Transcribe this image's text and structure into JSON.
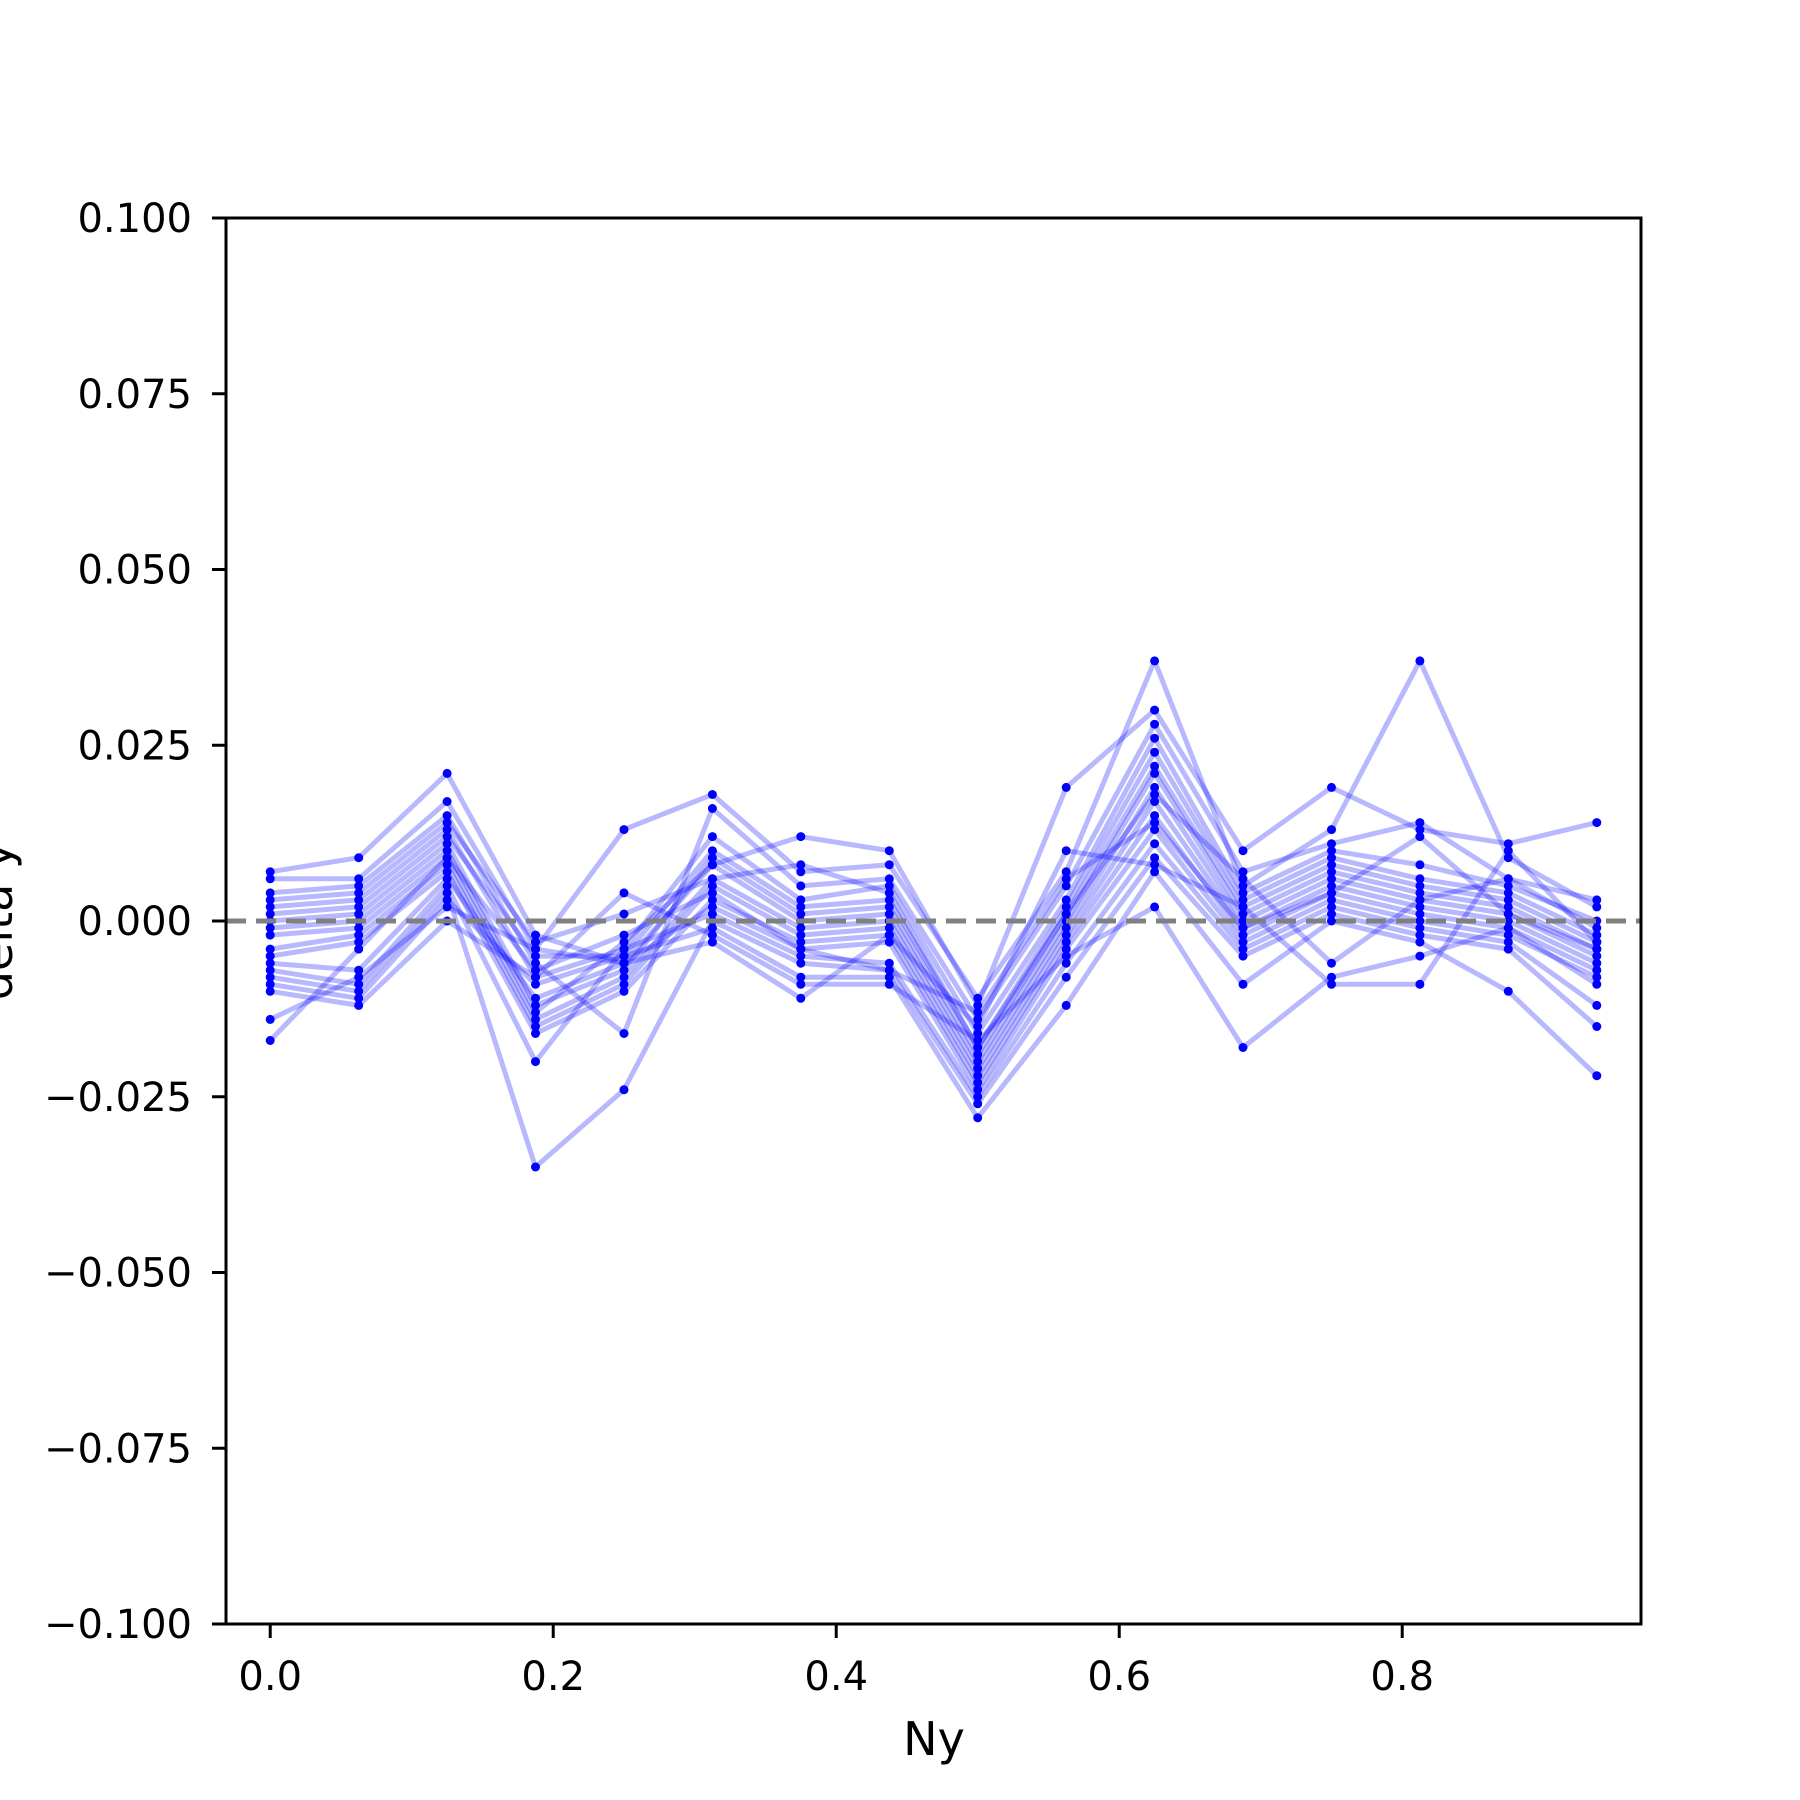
{
  "chart_data": {
    "type": "line",
    "title": "",
    "xlabel": "Ny",
    "ylabel": "delta y",
    "xlim": [
      -0.03125,
      0.96875
    ],
    "ylim": [
      -0.1,
      0.1
    ],
    "x_ticks": [
      0.0,
      0.2,
      0.4,
      0.6,
      0.8
    ],
    "x_tick_labels": [
      "0.0",
      "0.2",
      "0.4",
      "0.6",
      "0.8"
    ],
    "y_ticks": [
      0.1,
      0.075,
      0.05,
      0.025,
      0.0,
      -0.025,
      -0.05,
      -0.075,
      -0.1
    ],
    "y_tick_labels": [
      "0.100",
      "0.075",
      "0.050",
      "0.025",
      "0.000",
      "−0.025",
      "−0.050",
      "−0.075",
      "−0.100"
    ],
    "grid": false,
    "legend": "none",
    "reference_line": {
      "y": 0.0,
      "style": "dashed",
      "color": "#808080"
    },
    "series_style": {
      "color": "#0000ff",
      "line_opacity": 0.28,
      "marker": "dot"
    },
    "x": [
      0.0,
      0.0625,
      0.125,
      0.1875,
      0.25,
      0.3125,
      0.375,
      0.4375,
      0.5,
      0.5625,
      0.625,
      0.6875,
      0.75,
      0.8125,
      0.875,
      0.9375
    ],
    "series": [
      {
        "values": [
          0.007,
          0.009,
          0.021,
          -0.002,
          -0.006,
          0.008,
          0.012,
          0.01,
          -0.012,
          0.019,
          0.03,
          0.01,
          0.019,
          0.013,
          0.011,
          0.014
        ]
      },
      {
        "values": [
          0.006,
          0.006,
          0.017,
          -0.004,
          0.013,
          0.018,
          0.007,
          0.008,
          -0.011,
          0.007,
          0.037,
          0.005,
          0.013,
          0.037,
          0.009,
          0.002
        ]
      },
      {
        "values": [
          0.004,
          0.005,
          0.015,
          -0.006,
          -0.016,
          0.016,
          0.005,
          0.006,
          -0.014,
          0.005,
          0.028,
          0.007,
          0.011,
          0.014,
          0.006,
          0.003
        ]
      },
      {
        "values": [
          0.002,
          0.003,
          0.013,
          -0.008,
          -0.004,
          0.012,
          0.003,
          0.005,
          -0.016,
          0.003,
          0.026,
          0.004,
          0.01,
          0.008,
          0.005,
          0.0
        ]
      },
      {
        "values": [
          0.001,
          0.002,
          0.012,
          -0.005,
          -0.005,
          0.01,
          0.002,
          0.003,
          -0.018,
          0.002,
          0.024,
          0.003,
          0.009,
          0.006,
          0.004,
          -0.002
        ]
      },
      {
        "values": [
          0.0,
          0.001,
          0.011,
          -0.012,
          -0.007,
          0.009,
          0.001,
          0.002,
          -0.019,
          0.001,
          0.022,
          0.002,
          0.008,
          0.005,
          0.003,
          -0.003
        ]
      },
      {
        "values": [
          -0.001,
          0.0,
          0.01,
          -0.013,
          -0.003,
          0.008,
          0.0,
          0.001,
          -0.02,
          0.0,
          0.021,
          0.001,
          0.007,
          0.004,
          0.002,
          -0.004
        ]
      },
      {
        "values": [
          -0.002,
          -0.001,
          0.009,
          -0.014,
          -0.008,
          0.006,
          -0.001,
          0.0,
          -0.021,
          -0.001,
          0.019,
          0.0,
          0.006,
          0.003,
          0.001,
          -0.005
        ]
      },
      {
        "values": [
          -0.004,
          -0.002,
          0.008,
          -0.015,
          -0.009,
          0.005,
          -0.002,
          -0.001,
          -0.022,
          -0.002,
          0.017,
          -0.001,
          0.005,
          0.002,
          0.0,
          -0.006
        ]
      },
      {
        "values": [
          -0.005,
          -0.003,
          0.007,
          -0.016,
          -0.01,
          0.003,
          -0.003,
          -0.002,
          -0.023,
          -0.003,
          0.015,
          -0.002,
          0.004,
          0.001,
          -0.001,
          -0.007
        ]
      },
      {
        "values": [
          -0.006,
          -0.007,
          0.006,
          -0.011,
          -0.006,
          0.002,
          -0.004,
          -0.003,
          -0.024,
          -0.004,
          0.013,
          -0.003,
          0.003,
          0.0,
          -0.002,
          -0.008
        ]
      },
      {
        "values": [
          -0.007,
          -0.009,
          0.005,
          -0.02,
          -0.004,
          0.001,
          -0.005,
          -0.006,
          -0.025,
          -0.006,
          0.011,
          -0.004,
          0.002,
          -0.001,
          -0.003,
          -0.012
        ]
      },
      {
        "values": [
          -0.008,
          -0.01,
          0.004,
          -0.035,
          -0.024,
          0.0,
          -0.006,
          -0.007,
          -0.026,
          -0.008,
          0.009,
          -0.005,
          0.001,
          -0.002,
          -0.004,
          -0.015
        ]
      },
      {
        "values": [
          -0.009,
          -0.011,
          0.003,
          -0.009,
          -0.005,
          -0.001,
          -0.008,
          -0.008,
          -0.028,
          -0.012,
          0.007,
          -0.009,
          0.0,
          -0.003,
          -0.01,
          -0.022
        ]
      },
      {
        "values": [
          -0.01,
          -0.012,
          0.0,
          -0.008,
          0.004,
          -0.002,
          -0.009,
          -0.009,
          -0.017,
          -0.005,
          0.002,
          -0.018,
          -0.008,
          -0.005,
          -0.001,
          -0.009
        ]
      },
      {
        "values": [
          -0.014,
          -0.008,
          0.002,
          -0.004,
          -0.006,
          -0.003,
          -0.011,
          -0.002,
          -0.015,
          0.01,
          0.008,
          0.002,
          -0.009,
          -0.009,
          0.01,
          -0.003
        ]
      },
      {
        "values": [
          -0.017,
          -0.004,
          0.009,
          -0.007,
          -0.002,
          0.004,
          -0.004,
          -0.007,
          -0.013,
          0.006,
          0.014,
          -0.001,
          0.004,
          0.012,
          0.001,
          -0.004
        ]
      },
      {
        "values": [
          0.003,
          0.004,
          0.014,
          -0.003,
          0.001,
          0.006,
          0.008,
          0.004,
          -0.018,
          0.001,
          0.018,
          0.006,
          -0.006,
          0.003,
          0.006,
          -0.001
        ]
      }
    ]
  }
}
